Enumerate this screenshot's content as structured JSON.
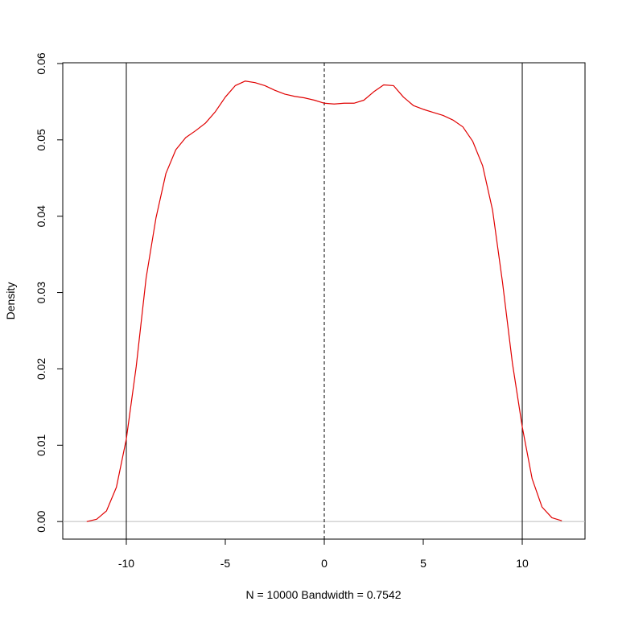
{
  "chart_data": {
    "type": "line",
    "xlabel": "N = 10000   Bandwidth = 0.7542",
    "ylabel": "Density",
    "x": [
      -12,
      -11.5,
      -11,
      -10.5,
      -10,
      -9.5,
      -9,
      -8.5,
      -8,
      -7.5,
      -7,
      -6.5,
      -6,
      -5.5,
      -5,
      -4.5,
      -4,
      -3.5,
      -3,
      -2.5,
      -2,
      -1.5,
      -1,
      -0.5,
      0,
      0.5,
      1,
      1.5,
      2,
      2.5,
      3,
      3.5,
      4,
      4.5,
      5,
      5.5,
      6,
      6.5,
      7,
      7.5,
      8,
      8.5,
      9,
      9.5,
      10,
      10.5,
      11,
      11.5,
      12
    ],
    "values": [
      0.0,
      0.0003,
      0.0014,
      0.0045,
      0.0108,
      0.0203,
      0.0319,
      0.0398,
      0.0456,
      0.0487,
      0.0503,
      0.0512,
      0.0522,
      0.0537,
      0.0556,
      0.0571,
      0.0577,
      0.0575,
      0.0571,
      0.0565,
      0.056,
      0.0557,
      0.0555,
      0.0552,
      0.0548,
      0.0547,
      0.0548,
      0.0548,
      0.0552,
      0.0563,
      0.0572,
      0.0571,
      0.0556,
      0.0545,
      0.054,
      0.0536,
      0.0532,
      0.0526,
      0.0517,
      0.0498,
      0.0466,
      0.0408,
      0.0314,
      0.0208,
      0.0124,
      0.0056,
      0.0019,
      0.0005,
      0.0001
    ],
    "color": "#e00000",
    "xlim": [
      -13.21,
      13.17
    ],
    "ylim": [
      -0.0023,
      0.0601
    ],
    "xticks": [
      -10,
      -5,
      0,
      5,
      10
    ],
    "yticks": [
      {
        "value": 0,
        "label": "0.00"
      },
      0.01,
      0.02,
      0.03,
      0.04,
      0.05,
      0.06
    ],
    "vlines": [
      -10,
      0,
      10
    ],
    "vline_styles": [
      "solid",
      "dashed",
      "solid"
    ],
    "hline": 0,
    "hline_color": "#bebebe"
  }
}
